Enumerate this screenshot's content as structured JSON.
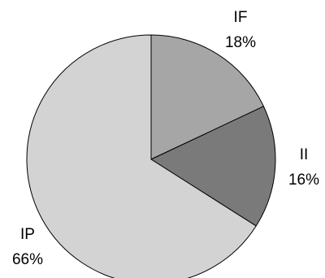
{
  "chart_data": {
    "type": "pie",
    "title": "",
    "start_angle_deg": 0,
    "direction": "clockwise",
    "slices": [
      {
        "name": "IF",
        "label": "IF",
        "value": 18,
        "percent_label": "18%",
        "color": "#a6a6a6"
      },
      {
        "name": "II",
        "label": "II",
        "value": 16,
        "percent_label": "16%",
        "color": "#7a7a7a"
      },
      {
        "name": "IP",
        "label": "IP",
        "value": 66,
        "percent_label": "66%",
        "color": "#d3d3d3"
      }
    ]
  }
}
